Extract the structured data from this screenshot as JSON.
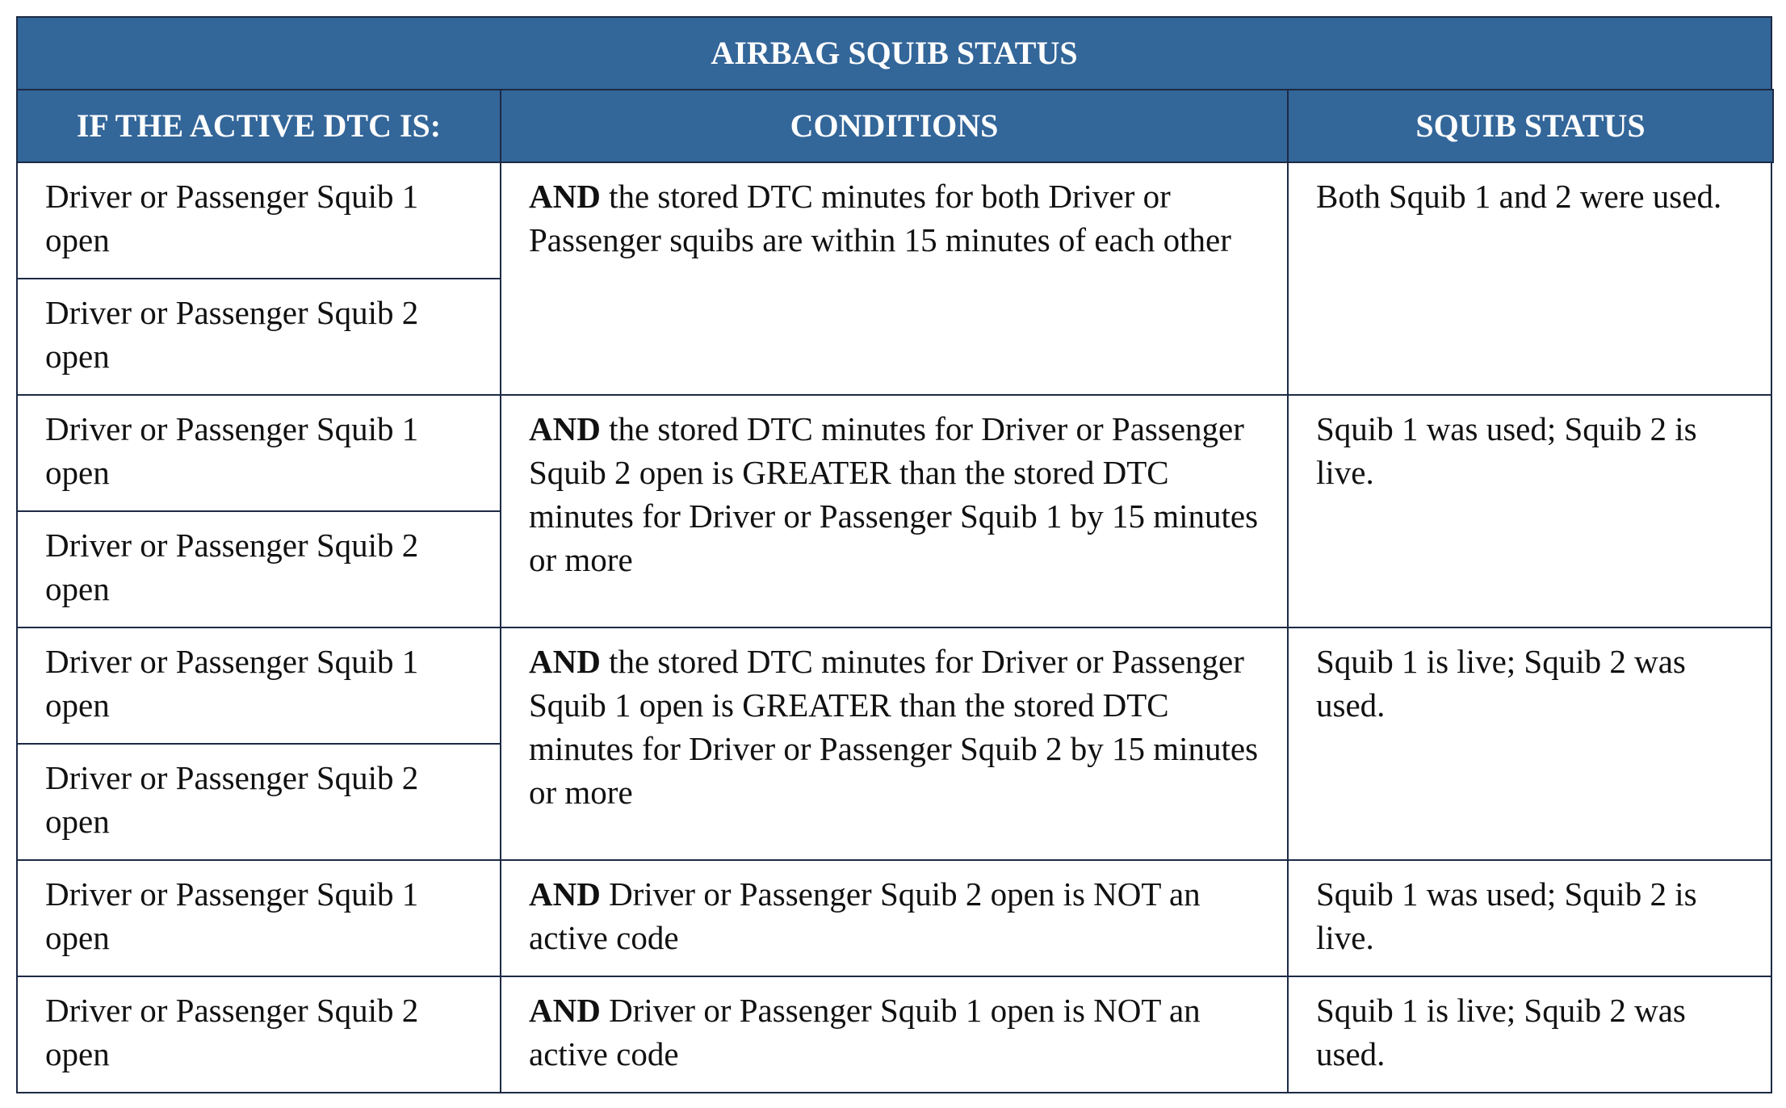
{
  "table": {
    "title": "AIRBAG SQUIB STATUS",
    "headers": [
      "IF THE ACTIVE DTC IS:",
      "CONDITIONS",
      "SQUIB STATUS"
    ],
    "rows": [
      {
        "dtc": [
          "Driver or Passenger Squib 1 open",
          "Driver or Passenger Squib 2 open"
        ],
        "conditions": {
          "lead": "AND",
          "text": "the stored DTC minutes for both Driver or Passenger squibs are within 15 minutes of each other"
        },
        "status": "Both Squib 1 and 2 were used."
      },
      {
        "dtc": [
          "Driver or Passenger Squib 1 open",
          "Driver or Passenger Squib 2 open"
        ],
        "conditions": {
          "lead": "AND",
          "text": "the stored DTC minutes for Driver or Passenger Squib 2 open is GREATER than the stored DTC minutes for Driver or Passenger Squib 1 by 15 minutes or more"
        },
        "status": "Squib 1 was used; Squib 2 is live."
      },
      {
        "dtc": [
          "Driver or Passenger Squib 1 open",
          "Driver or Passenger Squib 2 open"
        ],
        "conditions": {
          "lead": "AND",
          "text": "the stored DTC minutes for Driver or Passenger Squib 1 open is GREATER than the stored DTC minutes for Driver or Passenger Squib 2 by 15 minutes or more"
        },
        "status": "Squib 1 is live; Squib 2 was used."
      },
      {
        "dtc": [
          "Driver or Passenger Squib 1 open"
        ],
        "conditions": {
          "lead": "AND",
          "text": "Driver or Passenger Squib 2 open is NOT an active code"
        },
        "status": "Squib 1 was used; Squib 2 is live."
      },
      {
        "dtc": [
          "Driver or Passenger Squib 2 open"
        ],
        "conditions": {
          "lead": "AND",
          "text": "Driver or Passenger Squib 1 open is NOT an active code"
        },
        "status": "Squib 1 is live; Squib 2 was used."
      }
    ]
  }
}
